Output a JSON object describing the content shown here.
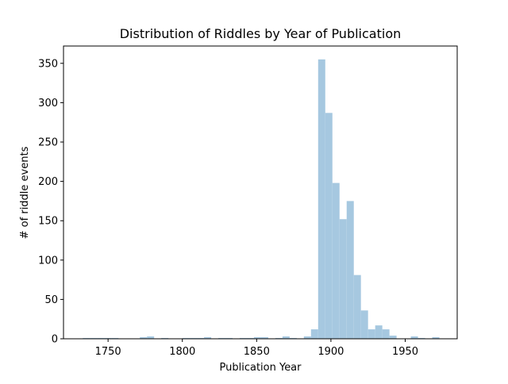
{
  "chart_data": {
    "type": "bar",
    "title": "Distribution of Riddles by Year of Publication",
    "xlabel": "Publication Year",
    "ylabel": "# of riddle events",
    "xlim": [
      1720,
      1985
    ],
    "ylim": [
      0,
      372
    ],
    "xticks": [
      1750,
      1800,
      1850,
      1900,
      1950
    ],
    "yticks": [
      0,
      50,
      100,
      150,
      200,
      250,
      300,
      350
    ],
    "bin_width": 4.8,
    "bins_start": [
      1733,
      1737.8,
      1742.6,
      1747.4,
      1752.2,
      1771.4,
      1776.2,
      1785.8,
      1800.2,
      1805,
      1809.8,
      1814.6,
      1824.2,
      1829,
      1838.6,
      1843.4,
      1848.2,
      1853,
      1862.6,
      1867.4,
      1872.2,
      1881.8,
      1886.6,
      1891.4,
      1896.2,
      1901,
      1905.8,
      1910.6,
      1915.4,
      1920.2,
      1925,
      1929.8,
      1934.6,
      1939.4,
      1953.8,
      1958.6,
      1968.2
    ],
    "values": [
      1,
      1,
      1,
      1,
      1,
      2,
      3,
      1,
      1,
      1,
      1,
      2,
      1,
      1,
      1,
      1,
      2,
      2,
      1,
      3,
      1,
      3,
      12,
      355,
      287,
      198,
      152,
      175,
      81,
      36,
      12,
      17,
      12,
      4,
      3,
      1,
      2
    ],
    "color": "#a6c8e0",
    "grid": false,
    "legend": "none"
  }
}
